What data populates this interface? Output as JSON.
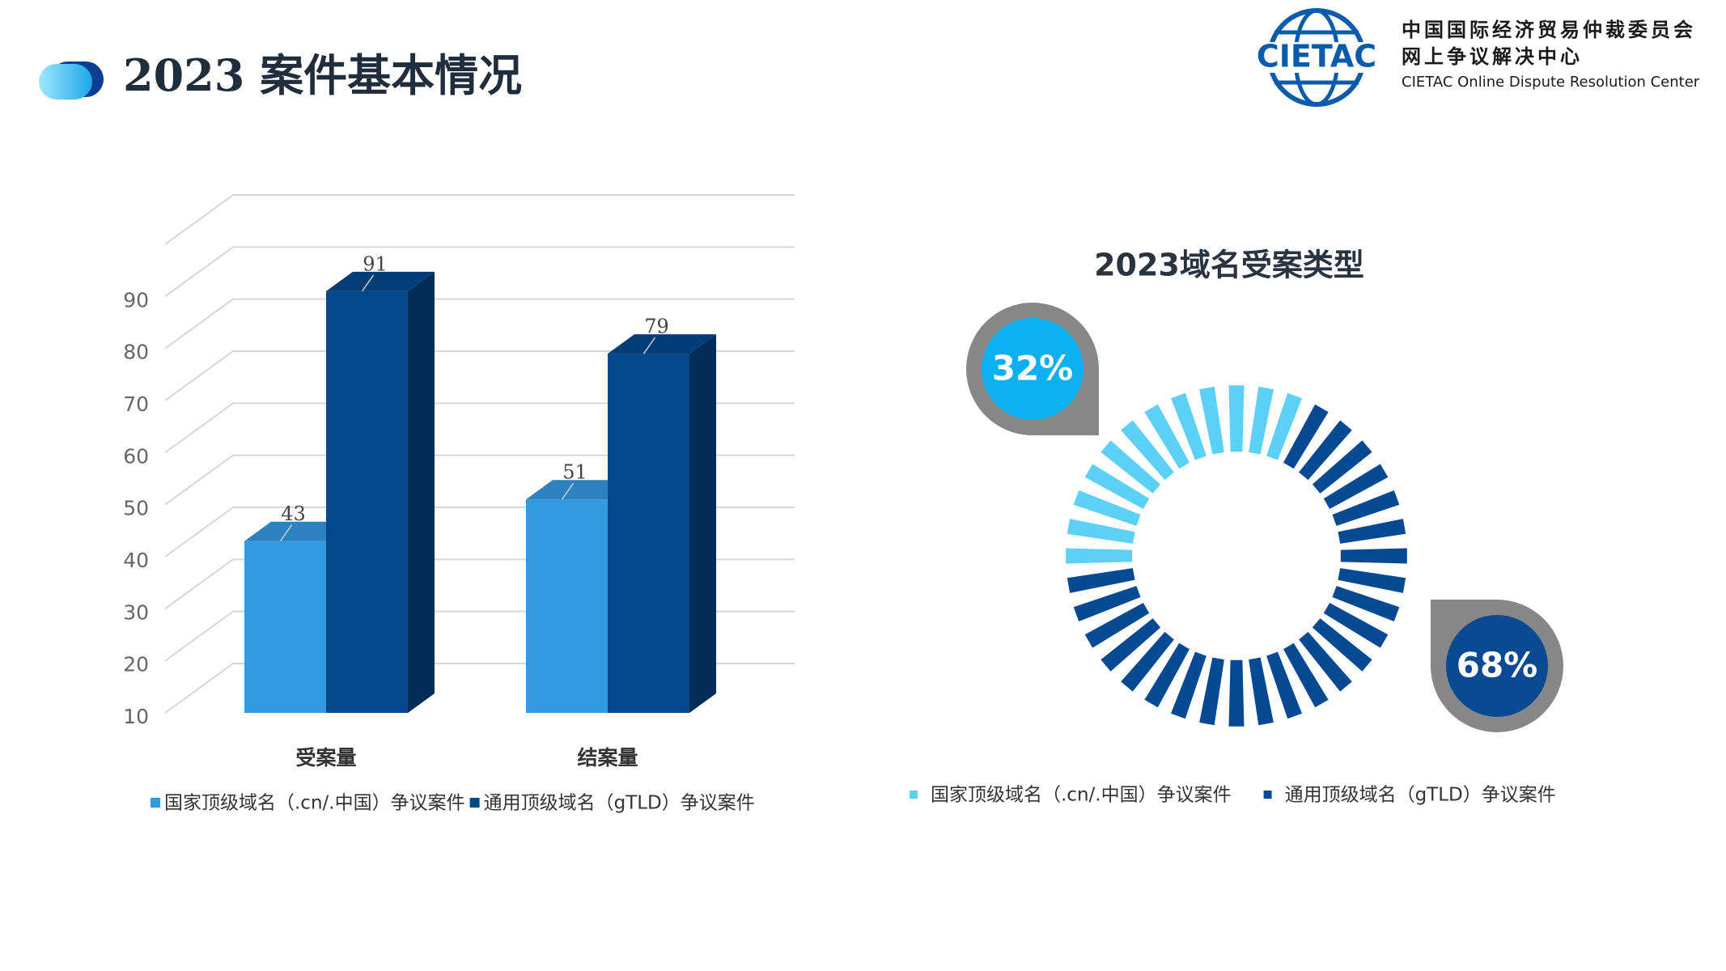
{
  "header": {
    "title": "2023 案件基本情况"
  },
  "logo": {
    "abbr": "CIETAC",
    "name_line1": "中国国际经济贸易仲裁委员会",
    "name_line2": "网上争议解决中心",
    "name_en": "CIETAC Online Dispute Resolution Center"
  },
  "chart_data": [
    {
      "type": "bar3d",
      "categories": [
        "受案量",
        "结案量"
      ],
      "series": [
        {
          "name": "国家顶级域名（.cn/.中国）争议案件",
          "color": "#3399e0",
          "values": [
            43,
            51
          ]
        },
        {
          "name": "通用顶级域名（gTLD）争议案件",
          "color": "#04488c",
          "values": [
            91,
            79
          ]
        }
      ],
      "ylim": [
        10,
        100
      ],
      "yticks": [
        10,
        20,
        30,
        40,
        50,
        60,
        70,
        80,
        90
      ],
      "grid": true
    },
    {
      "type": "donut",
      "title": "2023域名受案类型",
      "series": [
        {
          "name": "国家顶级域名（.cn/.中国）争议案件",
          "color": "#5dd0f5",
          "label_color": "#0ab0ef",
          "values": [
            32
          ],
          "value_labels": [
            "32%"
          ]
        },
        {
          "name": "通用顶级域名（gTLD）争议案件",
          "color": "#064a94",
          "label_color": "#0a4a94",
          "values": [
            68
          ],
          "value_labels": [
            "68%"
          ]
        }
      ]
    }
  ]
}
